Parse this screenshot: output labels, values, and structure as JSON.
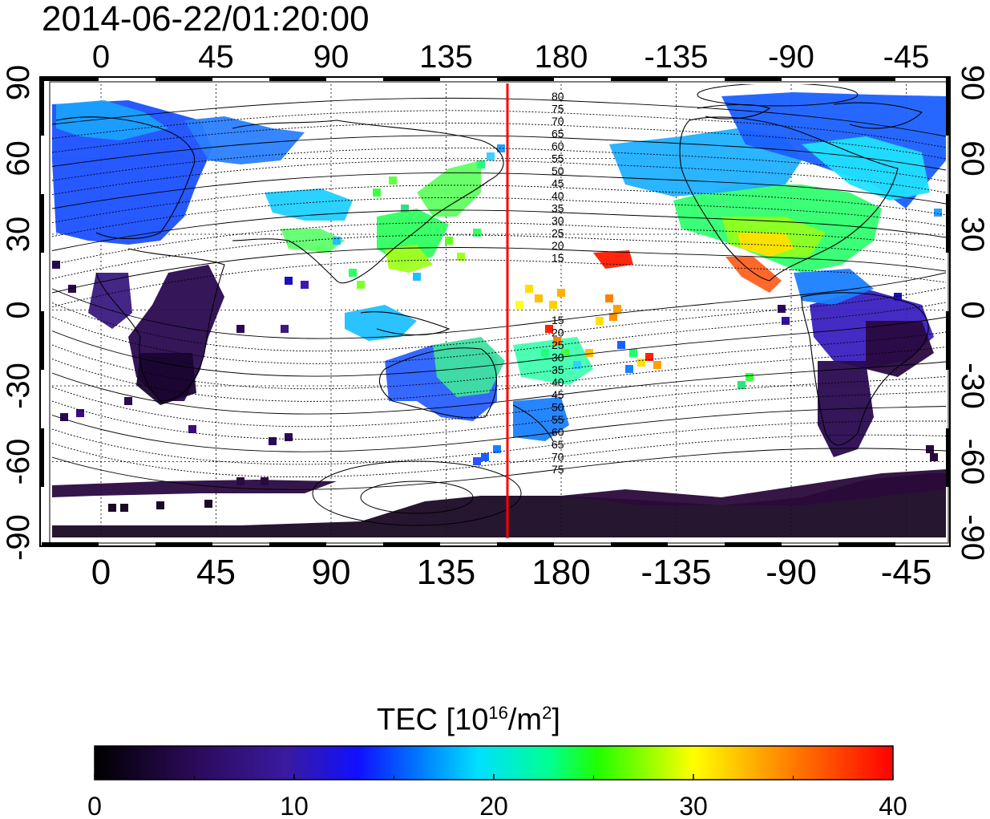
{
  "title": "2014-06-22/01:20:00",
  "map": {
    "lon_ticks": [
      "0",
      "45",
      "90",
      "135",
      "180",
      "-135",
      "-90",
      "-45"
    ],
    "lat_ticks_left": [
      "90",
      "60",
      "30",
      "0",
      "-30",
      "-60",
      "-90"
    ],
    "lat_ticks_right": [
      "90",
      "60",
      "30",
      "0",
      "-30",
      "-60",
      "-90"
    ],
    "meridian_line_color": "#ff0000",
    "grid": "dotted",
    "contour_labels_north": [
      "80",
      "75",
      "70",
      "65",
      "60",
      "55",
      "50",
      "45",
      "40",
      "35",
      "30",
      "25",
      "20",
      "15"
    ],
    "contour_labels_south": [
      "15",
      "20",
      "25",
      "30",
      "35",
      "40",
      "45",
      "50",
      "55",
      "60",
      "65",
      "70",
      "75"
    ]
  },
  "colorbar": {
    "label_text": "TEC  [10",
    "label_sup": "16",
    "label_unit": "/m",
    "label_unit_sup": "2",
    "label_close": "]",
    "ticks": [
      "0",
      "10",
      "20",
      "30",
      "40"
    ],
    "range": [
      0,
      40
    ],
    "colors": [
      "#000000",
      "#3a0a6a",
      "#1a1aff",
      "#00e0ff",
      "#00ff40",
      "#ffff00",
      "#ff0000"
    ]
  }
}
